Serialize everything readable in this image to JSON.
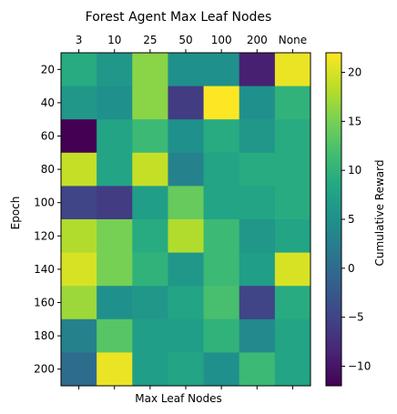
{
  "chart_data": {
    "type": "heatmap",
    "title": "Forest Agent Max Leaf Nodes",
    "xlabel": "Max Leaf Nodes",
    "ylabel": "Epoch",
    "x_categories": [
      "3",
      "10",
      "25",
      "50",
      "100",
      "200",
      "None"
    ],
    "y_categories": [
      "20",
      "40",
      "60",
      "80",
      "100",
      "120",
      "140",
      "160",
      "180",
      "200"
    ],
    "values": [
      [
        9,
        6,
        16,
        5,
        5,
        -9,
        21
      ],
      [
        6,
        5,
        16,
        -6,
        22,
        5,
        10
      ],
      [
        -12,
        8,
        11,
        5,
        9,
        6,
        9
      ],
      [
        19,
        8,
        19,
        3,
        8,
        9,
        9
      ],
      [
        -5,
        -6,
        7,
        14,
        8,
        8,
        9
      ],
      [
        18,
        15,
        9,
        18,
        11,
        6,
        8
      ],
      [
        20,
        15,
        10,
        6,
        11,
        7,
        20
      ],
      [
        17,
        5,
        6,
        8,
        12,
        -5,
        9
      ],
      [
        3,
        13,
        7,
        7,
        10,
        4,
        8
      ],
      [
        0,
        21,
        7,
        8,
        5,
        11,
        8
      ]
    ],
    "colorbar": {
      "label": "Cumulative Reward",
      "min": -12,
      "max": 22,
      "ticks": [
        -10,
        -5,
        0,
        5,
        10,
        15,
        20
      ]
    },
    "colormap": "viridis",
    "grid": false
  }
}
